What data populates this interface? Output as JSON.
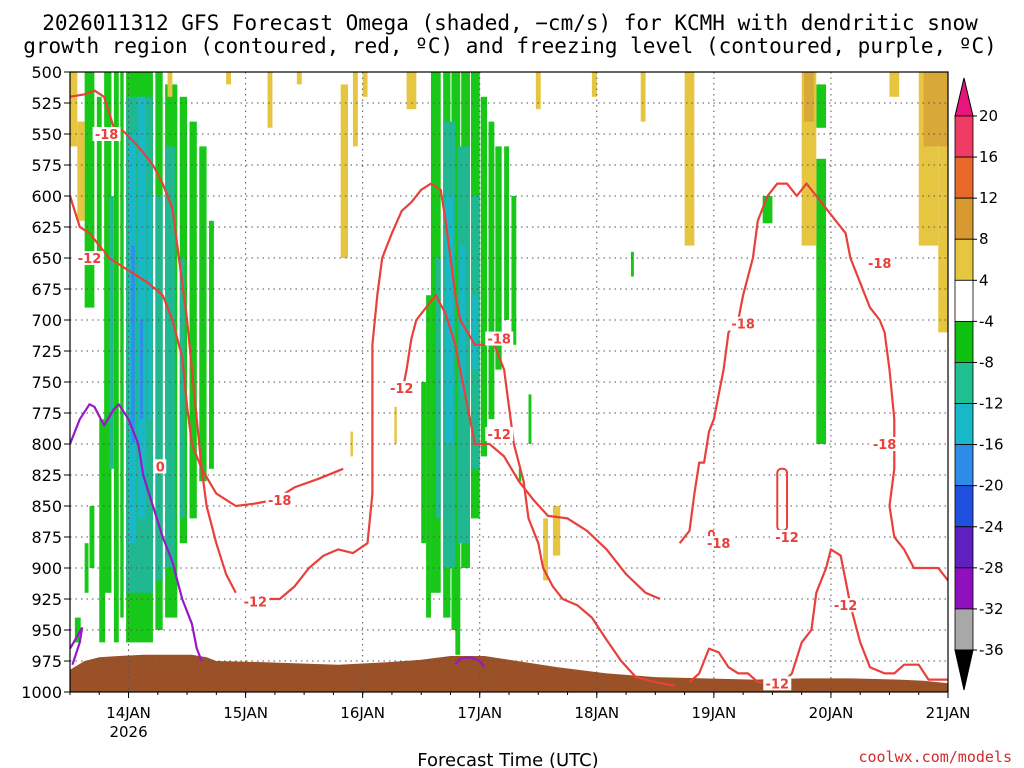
{
  "chart_data": {
    "type": "time-height cross-section",
    "title_line1": "2026011312 GFS Forecast Omega (shaded, −cm/s) for KCMH with dendritic snow",
    "title_line2": "growth region (contoured, red, ºC) and freezing level (contoured, purple, ºC)",
    "xlabel": "Forecast Time (UTC)",
    "credit": "coolwx.com/models",
    "y_levels": [
      "500",
      "525",
      "550",
      "575",
      "600",
      "625",
      "650",
      "675",
      "700",
      "725",
      "750",
      "775",
      "800",
      "825",
      "850",
      "875",
      "900",
      "925",
      "950",
      "975",
      "1000"
    ],
    "x_ticks": [
      {
        "label": "14JAN",
        "sub": "2026",
        "t": 12
      },
      {
        "label": "15JAN",
        "sub": "",
        "t": 36
      },
      {
        "label": "16JAN",
        "sub": "",
        "t": 60
      },
      {
        "label": "17JAN",
        "sub": "",
        "t": 84
      },
      {
        "label": "18JAN",
        "sub": "",
        "t": 108
      },
      {
        "label": "19JAN",
        "sub": "",
        "t": 132
      },
      {
        "label": "20JAN",
        "sub": "",
        "t": 156
      },
      {
        "label": "21JAN",
        "sub": "",
        "t": 180
      }
    ],
    "x_range_hours": [
      0,
      180
    ],
    "y_range_hpa": [
      500,
      1000
    ],
    "colorbar": {
      "labels": [
        "20",
        "16",
        "12",
        "8",
        "4",
        "-4",
        "-8",
        "-12",
        "-16",
        "-20",
        "-24",
        "-28",
        "-32",
        "-36"
      ],
      "colors": [
        "#f03c64",
        "#e8682a",
        "#d89a30",
        "#e6c540",
        "#ffffff",
        "#10c010",
        "#20c090",
        "#18b8c8",
        "#2c8ce8",
        "#2050e0",
        "#6020c0",
        "#9010c0",
        "#a8a8a8"
      ],
      "top_arrow_color": "#e8167c",
      "bottom_arrow_color": "#000000"
    },
    "contour_labels": [
      {
        "text": "-18",
        "t": 7.5,
        "p": 550
      },
      {
        "text": "-12",
        "t": 4,
        "p": 650
      },
      {
        "text": "-18",
        "t": 43,
        "p": 845
      },
      {
        "text": "-12",
        "t": 38,
        "p": 927
      },
      {
        "text": "-12",
        "t": 68,
        "p": 755
      },
      {
        "text": "-18",
        "t": 88,
        "p": 715
      },
      {
        "text": "-12",
        "t": 88,
        "p": 792
      },
      {
        "text": "-18",
        "t": 133,
        "p": 880
      },
      {
        "text": "-18",
        "t": 138,
        "p": 703
      },
      {
        "text": "-12",
        "t": 147,
        "p": 875
      },
      {
        "text": "-18",
        "t": 166,
        "p": 654
      },
      {
        "text": "-12",
        "t": 159,
        "p": 930
      },
      {
        "text": "-18",
        "t": 167,
        "p": 800
      },
      {
        "text": "-12",
        "t": 145,
        "p": 993
      },
      {
        "text": "0",
        "t": 18.5,
        "p": 818
      }
    ],
    "series": [
      {
        "name": "-12C dendritic contour (left)",
        "color": "#e8403a",
        "points": [
          [
            0,
            520
          ],
          [
            3,
            518
          ],
          [
            5,
            515
          ],
          [
            7,
            520
          ],
          [
            9,
            545
          ],
          [
            11,
            548
          ],
          [
            14,
            560
          ],
          [
            17,
            575
          ],
          [
            19,
            590
          ],
          [
            21,
            610
          ],
          [
            22,
            640
          ],
          [
            23,
            670
          ],
          [
            24,
            700
          ],
          [
            25,
            740
          ],
          [
            26,
            780
          ],
          [
            27,
            820
          ],
          [
            28,
            850
          ],
          [
            30,
            880
          ],
          [
            32,
            905
          ],
          [
            34,
            920
          ]
        ]
      },
      {
        "name": "-18C dendritic contour (left)",
        "color": "#e8403a",
        "points": [
          [
            0,
            600
          ],
          [
            2,
            625
          ],
          [
            4,
            630
          ],
          [
            6,
            640
          ],
          [
            8,
            650
          ],
          [
            10,
            655
          ],
          [
            12,
            660
          ],
          [
            14,
            665
          ],
          [
            16,
            670
          ],
          [
            19,
            680
          ],
          [
            21,
            700
          ],
          [
            23,
            730
          ],
          [
            24,
            770
          ],
          [
            25,
            800
          ],
          [
            27,
            820
          ],
          [
            30,
            840
          ],
          [
            34,
            850
          ],
          [
            38,
            848
          ],
          [
            42,
            845
          ],
          [
            46,
            835
          ],
          [
            51,
            828
          ],
          [
            56,
            820
          ]
        ]
      },
      {
        "name": "-12C dendritic contour (middle)",
        "color": "#e8403a",
        "points": [
          [
            39,
            925
          ],
          [
            43,
            925
          ],
          [
            46,
            915
          ],
          [
            49,
            900
          ],
          [
            52,
            890
          ],
          [
            55,
            885
          ],
          [
            58,
            888
          ],
          [
            61,
            880
          ],
          [
            62,
            840
          ],
          [
            62,
            780
          ],
          [
            62,
            720
          ],
          [
            63,
            680
          ],
          [
            64,
            650
          ],
          [
            66,
            630
          ],
          [
            68,
            612
          ],
          [
            70,
            605
          ],
          [
            72,
            595
          ],
          [
            74,
            590
          ],
          [
            76,
            595
          ],
          [
            77,
            620
          ],
          [
            78,
            650
          ],
          [
            79,
            680
          ],
          [
            80,
            700
          ],
          [
            83,
            720
          ],
          [
            87,
            720
          ],
          [
            89,
            740
          ],
          [
            90,
            770
          ],
          [
            91,
            800
          ],
          [
            93,
            830
          ],
          [
            94,
            860
          ],
          [
            96,
            880
          ],
          [
            97,
            900
          ],
          [
            99,
            915
          ],
          [
            101,
            925
          ],
          [
            104,
            930
          ],
          [
            107,
            940
          ],
          [
            110,
            958
          ],
          [
            113,
            975
          ],
          [
            116,
            988
          ],
          [
            120,
            992
          ],
          [
            124,
            995
          ]
        ]
      },
      {
        "name": "-18C dendritic contour (middle)",
        "color": "#e8403a",
        "points": [
          [
            68,
            760
          ],
          [
            69,
            740
          ],
          [
            70,
            715
          ],
          [
            71,
            700
          ],
          [
            73,
            690
          ],
          [
            75,
            680
          ],
          [
            77,
            695
          ],
          [
            79,
            720
          ],
          [
            80,
            740
          ],
          [
            81,
            760
          ],
          [
            82,
            780
          ],
          [
            83,
            800
          ],
          [
            86,
            800
          ],
          [
            89,
            810
          ],
          [
            92,
            830
          ],
          [
            95,
            845
          ],
          [
            98,
            858
          ],
          [
            102,
            860
          ],
          [
            106,
            870
          ],
          [
            110,
            885
          ],
          [
            114,
            905
          ],
          [
            118,
            920
          ],
          [
            121,
            925
          ]
        ]
      },
      {
        "name": "-18C dendritic contour (right)",
        "color": "#e8403a",
        "points": [
          [
            125,
            880
          ],
          [
            127,
            870
          ],
          [
            128,
            840
          ],
          [
            129,
            815
          ],
          [
            130,
            815
          ],
          [
            131,
            790
          ],
          [
            132,
            780
          ],
          [
            133,
            760
          ],
          [
            134,
            740
          ],
          [
            135,
            710
          ],
          [
            137,
            700
          ],
          [
            138,
            680
          ],
          [
            140,
            650
          ],
          [
            141,
            620
          ],
          [
            142,
            610
          ],
          [
            143,
            600
          ],
          [
            145,
            590
          ],
          [
            147,
            590
          ],
          [
            149,
            600
          ],
          [
            151,
            590
          ],
          [
            153,
            600
          ],
          [
            155,
            610
          ],
          [
            157,
            620
          ],
          [
            159,
            630
          ],
          [
            160,
            650
          ],
          [
            162,
            670
          ],
          [
            164,
            690
          ],
          [
            166,
            700
          ],
          [
            167,
            710
          ],
          [
            168,
            740
          ],
          [
            169,
            780
          ],
          [
            169,
            820
          ],
          [
            168,
            850
          ],
          [
            169,
            875
          ],
          [
            171,
            885
          ],
          [
            173,
            900
          ],
          [
            176,
            900
          ],
          [
            178,
            900
          ],
          [
            180,
            910
          ]
        ]
      },
      {
        "name": "-12C dendritic contour (right)",
        "color": "#e8403a",
        "points": [
          [
            127,
            992
          ],
          [
            129,
            985
          ],
          [
            131,
            965
          ],
          [
            133,
            968
          ],
          [
            135,
            980
          ],
          [
            137,
            985
          ],
          [
            139,
            985
          ],
          [
            141,
            992
          ],
          [
            143,
            993
          ],
          [
            146,
            993
          ],
          [
            148,
            985
          ],
          [
            150,
            960
          ],
          [
            152,
            950
          ],
          [
            153,
            920
          ],
          [
            155,
            900
          ],
          [
            156,
            885
          ],
          [
            158,
            890
          ],
          [
            159,
            910
          ],
          [
            160,
            930
          ],
          [
            162,
            960
          ],
          [
            164,
            980
          ],
          [
            167,
            985
          ],
          [
            169,
            985
          ],
          [
            171,
            978
          ],
          [
            174,
            978
          ],
          [
            176,
            990
          ],
          [
            180,
            990
          ]
        ]
      },
      {
        "name": "freezing level (left)",
        "color": "#9818c8",
        "points": [
          [
            0,
            800
          ],
          [
            1,
            790
          ],
          [
            2,
            780
          ],
          [
            4,
            768
          ],
          [
            5,
            770
          ],
          [
            7,
            785
          ],
          [
            9,
            772
          ],
          [
            10,
            768
          ],
          [
            12,
            780
          ],
          [
            14,
            800
          ],
          [
            15,
            825
          ],
          [
            17,
            850
          ],
          [
            19,
            875
          ],
          [
            21,
            895
          ],
          [
            23,
            925
          ],
          [
            25,
            945
          ],
          [
            26,
            965
          ],
          [
            27,
            975
          ]
        ]
      },
      {
        "name": "freezing level (middle)",
        "color": "#9818c8",
        "points": [
          [
            79,
            978
          ],
          [
            80,
            973
          ],
          [
            82,
            972
          ],
          [
            84,
            975
          ],
          [
            85,
            980
          ]
        ]
      }
    ]
  }
}
